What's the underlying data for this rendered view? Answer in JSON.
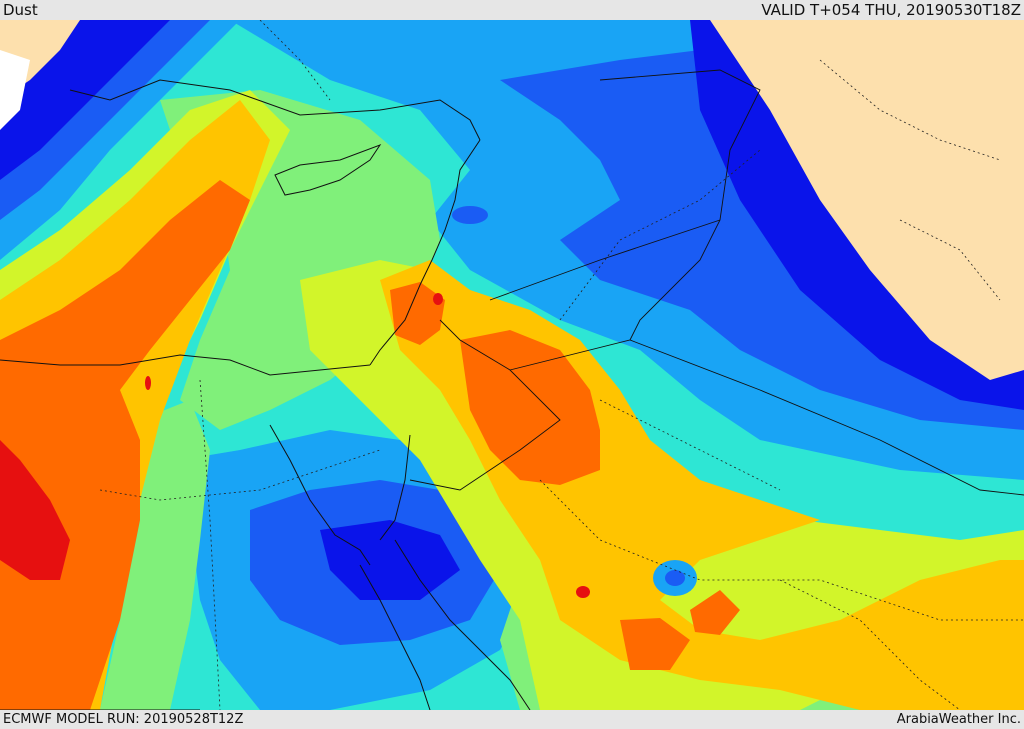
{
  "header": {
    "product": "Dust",
    "valid": "VALID T+054 THU, 20190530T18Z"
  },
  "footer": {
    "model_run": "ECMWF MODEL RUN: 20190528T12Z",
    "credit": "ArabiaWeather Inc."
  },
  "palette": {
    "land_outside": "#fde0ad",
    "sea_white": "#ffffff",
    "dark_blue": "#0a14ea",
    "blue": "#1a5cf4",
    "light_blue": "#19a4f5",
    "cyan": "#2ee6d4",
    "light_green": "#80f07a",
    "yellow_green": "#d2f52a",
    "yellow": "#ffc400",
    "orange": "#ff6a00",
    "red": "#e61010"
  }
}
